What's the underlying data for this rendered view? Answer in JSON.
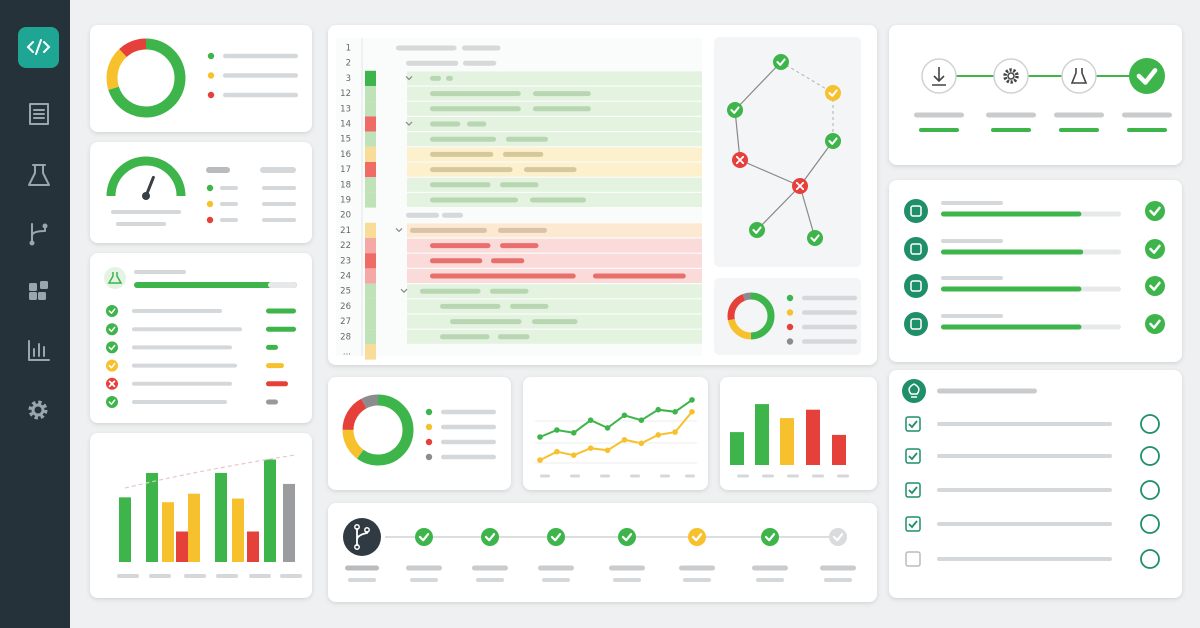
{
  "code_editor": {
    "line_numbers": [
      "1",
      "2",
      "3",
      "12",
      "13",
      "14",
      "15",
      "16",
      "17",
      "18",
      "19",
      "20",
      "21",
      "22",
      "23",
      "24",
      "25",
      "26",
      "27",
      "28",
      "..."
    ]
  },
  "charts": {
    "status_donut": {
      "type": "pie",
      "values": [
        70,
        18,
        12
      ],
      "colors": [
        "#3db54a",
        "#f6c12d",
        "#e5403a"
      ]
    },
    "gauge": {
      "type": "gauge",
      "value": 62,
      "max": 100,
      "color": "#3db54a"
    },
    "bar_chart": {
      "type": "bar",
      "values": [
        53,
        73,
        49,
        25,
        56,
        73,
        52,
        25,
        84,
        64
      ],
      "colors": [
        "#3db54a",
        "#3db54a",
        "#f6c12d",
        "#e5403a",
        "#f6c12d",
        "#3db54a",
        "#f6c12d",
        "#e5403a",
        "#3db54a",
        "#9a9c9e"
      ],
      "ylim": [
        0,
        100
      ]
    },
    "mini_donut": {
      "type": "pie",
      "values": [
        50,
        22,
        22,
        6
      ],
      "colors": [
        "#3db54a",
        "#f6c12d",
        "#e5403a",
        "#8a8c8e"
      ]
    },
    "coverage_donut": {
      "type": "pie",
      "values": [
        60,
        15,
        17,
        8
      ],
      "colors": [
        "#3db54a",
        "#f6c12d",
        "#e5403a",
        "#8a8c8e"
      ]
    },
    "trend_lines": {
      "type": "line",
      "ylim": [
        0,
        100
      ],
      "series": [
        {
          "color": "#3db54a",
          "values": [
            40,
            50,
            46,
            64,
            53,
            71,
            64,
            79,
            76,
            93
          ]
        },
        {
          "color": "#f6c12d",
          "values": [
            7,
            19,
            14,
            24,
            21,
            36,
            31,
            43,
            47,
            76
          ]
        }
      ]
    },
    "column_chart": {
      "type": "bar",
      "values": [
        47,
        87,
        67,
        79,
        43
      ],
      "colors": [
        "#3db54a",
        "#3db54a",
        "#f6c12d",
        "#e5403a",
        "#e5403a"
      ],
      "ylim": [
        0,
        100
      ]
    },
    "progress_bars": {
      "type": "progress",
      "values": [
        78,
        79,
        78,
        78
      ],
      "max": 100,
      "color": "#3db54a"
    }
  }
}
